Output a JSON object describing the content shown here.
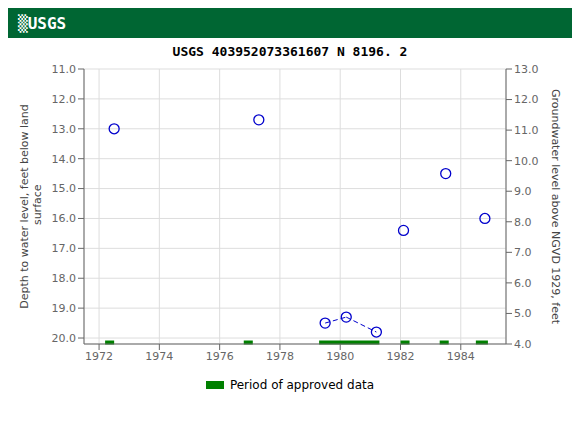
{
  "chart_data": {
    "type": "scatter",
    "title": "USGS 403952073361607 N  8196. 2",
    "annotations": [
      "▒USGS"
    ],
    "ylabel": "Depth to water level, feet below land\n surface",
    "y2label": "Groundwater level above NGVD 1929, feet",
    "xlim": [
      1971.5,
      1985.5
    ],
    "xticks": [
      1972,
      1974,
      1976,
      1978,
      1980,
      1982,
      1984
    ],
    "ylim": [
      20.2,
      11.0
    ],
    "yticks": [
      {
        "value": 11.0,
        "label": "11.0"
      },
      {
        "value": 12.0,
        "label": "12.0"
      },
      {
        "value": 13.0,
        "label": "13.0"
      },
      {
        "value": 14.0,
        "label": "14.0"
      },
      {
        "value": 15.0,
        "label": "15.0"
      },
      {
        "value": 16.0,
        "label": "16.0"
      },
      {
        "value": 17.0,
        "label": "17.0"
      },
      {
        "value": 18.0,
        "label": "18.0"
      },
      {
        "value": 19.0,
        "label": "19.0"
      },
      {
        "value": 20.0,
        "label": "20.0"
      }
    ],
    "y2lim": [
      4.0,
      13.0
    ],
    "y2ticks": [
      {
        "value": 4.0,
        "label": "4.0"
      },
      {
        "value": 5.0,
        "label": "5.0"
      },
      {
        "value": 6.0,
        "label": "6.0"
      },
      {
        "value": 7.0,
        "label": "7.0"
      },
      {
        "value": 8.0,
        "label": "8.0"
      },
      {
        "value": 9.0,
        "label": "9.0"
      },
      {
        "value": 10.0,
        "label": "10.0"
      },
      {
        "value": 11.0,
        "label": "11.0"
      },
      {
        "value": 12.0,
        "label": "12.0"
      },
      {
        "value": 13.0,
        "label": "13.0"
      }
    ],
    "grid": true,
    "legend": "bottom",
    "series": [
      {
        "type": "scatter",
        "color": "#0000cc",
        "marker": "circle",
        "line_style": "dashed",
        "x": [
          1972.5,
          1977.3,
          1979.5,
          1980.2,
          1981.2,
          1982.1,
          1983.5,
          1984.8
        ],
        "values": [
          13.0,
          12.7,
          19.5,
          19.3,
          19.8,
          16.4,
          14.5,
          16.0
        ],
        "connect": [
          [
            2,
            3
          ],
          [
            3,
            4
          ]
        ]
      },
      {
        "name": "Period of approved data",
        "type": "range",
        "color": "#008000",
        "y": 20.15,
        "ranges": [
          [
            1972.2,
            1972.5
          ],
          [
            1976.8,
            1977.1
          ],
          [
            1979.3,
            1981.3
          ],
          [
            1982.0,
            1982.3
          ],
          [
            1983.3,
            1983.6
          ],
          [
            1984.5,
            1984.9
          ]
        ]
      }
    ]
  }
}
